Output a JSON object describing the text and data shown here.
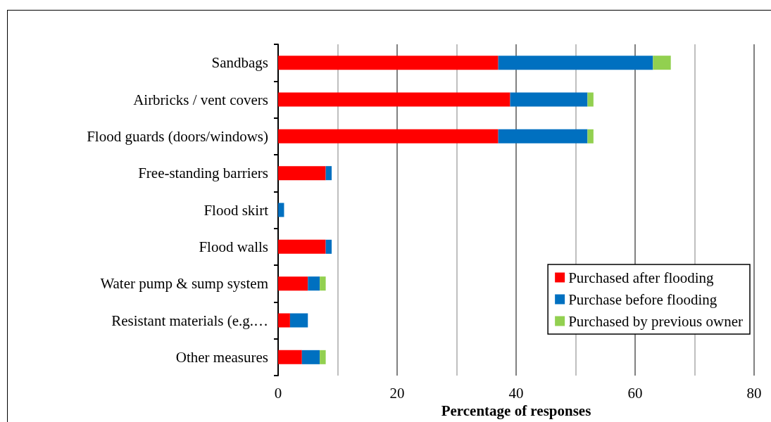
{
  "chart_data": {
    "type": "bar",
    "orientation": "horizontal",
    "stacked": true,
    "xlabel": "Percentage of responses",
    "categories": [
      "Sandbags",
      "Airbricks / vent covers",
      "Flood guards (doors/windows)",
      "Free-standing barriers",
      "Flood skirt",
      "Flood walls",
      "Water pump & sump system",
      "Resistant materials (e.g.…",
      "Other measures"
    ],
    "series": [
      {
        "name": "Purchased after flooding",
        "color": "#ff0000",
        "values": [
          37,
          39,
          37,
          8,
          0,
          8,
          5,
          2,
          4
        ]
      },
      {
        "name": "Purchase before flooding",
        "color": "#0070c0",
        "values": [
          26,
          13,
          15,
          1,
          1,
          1,
          2,
          3,
          3
        ]
      },
      {
        "name": "Purchased by previous owner",
        "color": "#92d050",
        "values": [
          3,
          1,
          1,
          0,
          0,
          0,
          1,
          0,
          1
        ]
      }
    ],
    "xlim": [
      0,
      80
    ],
    "xticks": [
      0,
      20,
      40,
      60,
      80
    ],
    "grid": "x",
    "legend": "bottom right"
  }
}
